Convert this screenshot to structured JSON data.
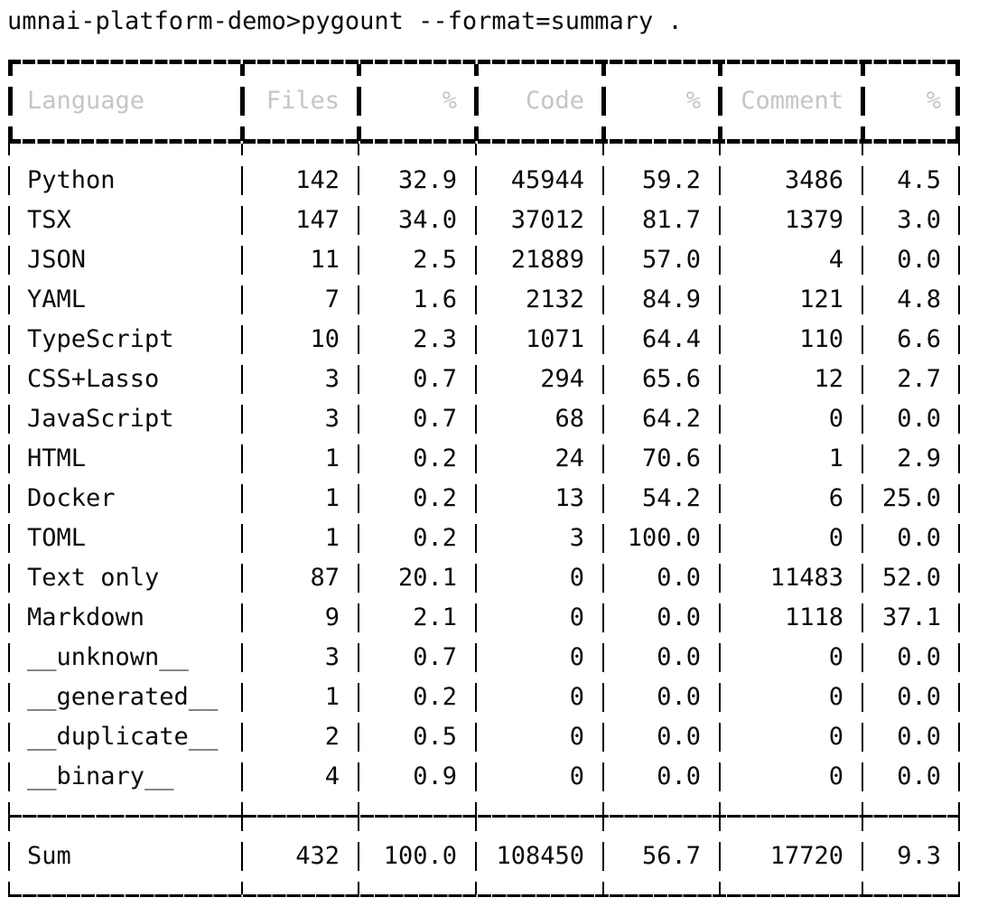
{
  "terminal": {
    "command_line": "umnai-platform-demo>pygount --format=summary ."
  },
  "table": {
    "columns": [
      {
        "label": "Language",
        "align": "left"
      },
      {
        "label": "Files",
        "align": "right"
      },
      {
        "label": "%",
        "align": "right"
      },
      {
        "label": "Code",
        "align": "right"
      },
      {
        "label": "%",
        "align": "right"
      },
      {
        "label": "Comment",
        "align": "right"
      },
      {
        "label": "%",
        "align": "right"
      }
    ],
    "rows": [
      [
        "Python",
        "142",
        "32.9",
        "45944",
        "59.2",
        "3486",
        "4.5"
      ],
      [
        "TSX",
        "147",
        "34.0",
        "37012",
        "81.7",
        "1379",
        "3.0"
      ],
      [
        "JSON",
        "11",
        "2.5",
        "21889",
        "57.0",
        "4",
        "0.0"
      ],
      [
        "YAML",
        "7",
        "1.6",
        "2132",
        "84.9",
        "121",
        "4.8"
      ],
      [
        "TypeScript",
        "10",
        "2.3",
        "1071",
        "64.4",
        "110",
        "6.6"
      ],
      [
        "CSS+Lasso",
        "3",
        "0.7",
        "294",
        "65.6",
        "12",
        "2.7"
      ],
      [
        "JavaScript",
        "3",
        "0.7",
        "68",
        "64.2",
        "0",
        "0.0"
      ],
      [
        "HTML",
        "1",
        "0.2",
        "24",
        "70.6",
        "1",
        "2.9"
      ],
      [
        "Docker",
        "1",
        "0.2",
        "13",
        "54.2",
        "6",
        "25.0"
      ],
      [
        "TOML",
        "1",
        "0.2",
        "3",
        "100.0",
        "0",
        "0.0"
      ],
      [
        "Text only",
        "87",
        "20.1",
        "0",
        "0.0",
        "11483",
        "52.0"
      ],
      [
        "Markdown",
        "9",
        "2.1",
        "0",
        "0.0",
        "1118",
        "37.1"
      ],
      [
        "__unknown__",
        "3",
        "0.7",
        "0",
        "0.0",
        "0",
        "0.0"
      ],
      [
        "__generated__",
        "1",
        "0.2",
        "0",
        "0.0",
        "0",
        "0.0"
      ],
      [
        "__duplicate__",
        "2",
        "0.5",
        "0",
        "0.0",
        "0",
        "0.0"
      ],
      [
        "__binary__",
        "4",
        "0.9",
        "0",
        "0.0",
        "0",
        "0.0"
      ]
    ],
    "sum_row": [
      "Sum",
      "432",
      "100.0",
      "108450",
      "56.7",
      "17720",
      "9.3"
    ]
  },
  "colors": {
    "background": "#ffffff",
    "border": "#000000",
    "header_text": "#c3c5c7",
    "body_text": "#0b0b0b"
  }
}
